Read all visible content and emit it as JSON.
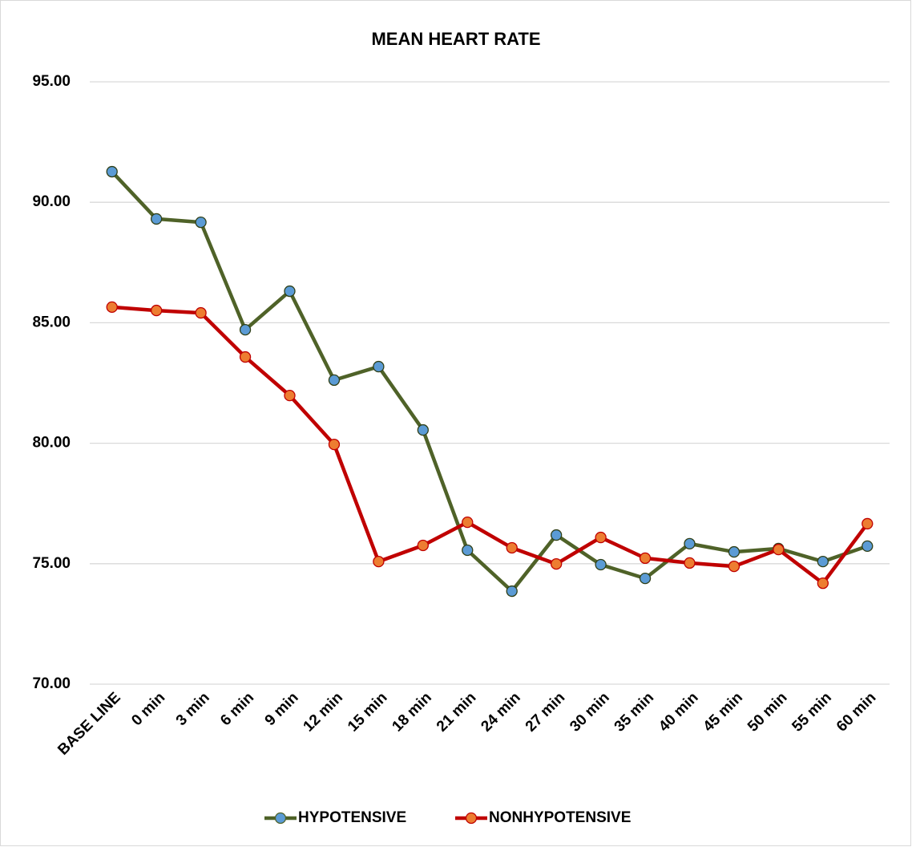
{
  "chart_data": {
    "type": "line",
    "title": "MEAN HEART RATE",
    "categories": [
      "BASE LINE",
      "0 min",
      "3 min",
      "6 min",
      "9 min",
      "12 min",
      "15 min",
      "18 min",
      "21 min",
      "24 min",
      "27 min",
      "30 min",
      "35 min",
      "40 min",
      "45 min",
      "50 min",
      "55 min",
      "60 min"
    ],
    "series": [
      {
        "name": "HYPOTENSIVE",
        "color": "#4f6228",
        "marker_color": "#5b9bd5",
        "values": [
          91.27,
          89.31,
          89.17,
          84.71,
          86.31,
          82.62,
          83.18,
          80.55,
          75.56,
          73.86,
          76.19,
          74.96,
          74.39,
          75.83,
          75.49,
          75.63,
          75.09,
          75.73
        ]
      },
      {
        "name": "NONHYPOTENSIVE",
        "color": "#c00000",
        "marker_color": "#ed7d31",
        "values": [
          85.65,
          85.51,
          85.41,
          83.58,
          81.98,
          79.95,
          75.09,
          75.76,
          76.72,
          75.66,
          74.99,
          76.09,
          75.23,
          75.03,
          74.89,
          75.59,
          74.19,
          76.66
        ]
      }
    ],
    "ylim": [
      70,
      95
    ],
    "yticks": [
      {
        "value": 70,
        "label": "70.00"
      },
      {
        "value": 75,
        "label": "75.00"
      },
      {
        "value": 80,
        "label": "80.00"
      },
      {
        "value": 85,
        "label": "85.00"
      },
      {
        "value": 90,
        "label": "90.00"
      },
      {
        "value": 95,
        "label": "95.00"
      }
    ],
    "grid": true,
    "legend": "bottom"
  }
}
